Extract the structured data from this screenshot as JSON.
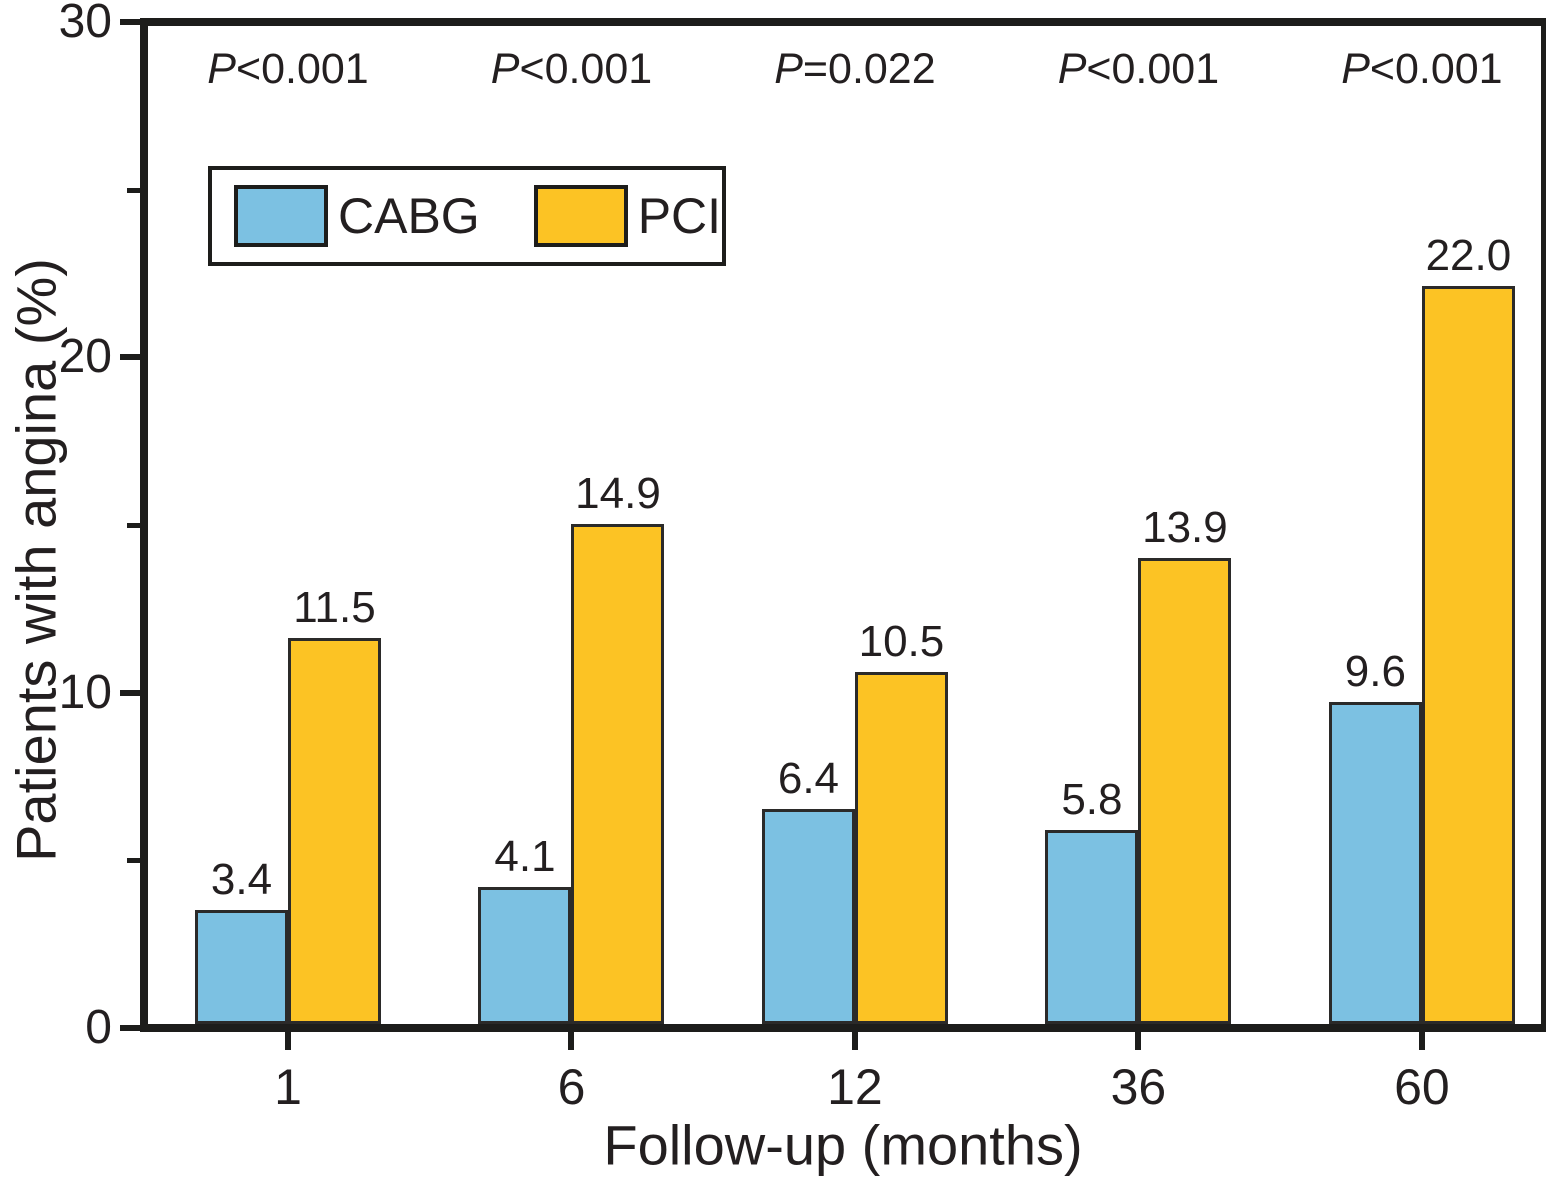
{
  "chart_data": {
    "type": "bar",
    "title": "",
    "xlabel": "Follow-up (months)",
    "ylabel": "Patients with angina (%)",
    "categories": [
      "1",
      "6",
      "12",
      "36",
      "60"
    ],
    "series": [
      {
        "name": "CABG",
        "color": "#7cc1e2",
        "values": [
          3.4,
          4.1,
          6.4,
          5.8,
          9.6
        ],
        "labels": [
          "3.4",
          "4.1",
          "6.4",
          "5.8",
          "9.6"
        ]
      },
      {
        "name": "PCI",
        "color": "#fcc324",
        "values": [
          11.5,
          14.9,
          10.5,
          13.9,
          22.0
        ],
        "labels": [
          "11.5",
          "14.9",
          "10.5",
          "13.9",
          "22.0"
        ]
      }
    ],
    "p_values": [
      "P<0.001",
      "P<0.001",
      "P=0.022",
      "P<0.001",
      "P<0.001"
    ],
    "ylim": [
      0,
      30
    ],
    "yticks_major": [
      0,
      10,
      20,
      30
    ],
    "yticks_minor": [
      5,
      15,
      25
    ],
    "grid": false,
    "legend_position": "inside-top-left"
  },
  "colors": {
    "axis": "#1d1d1b",
    "text": "#231f20",
    "bar_edge": "#2b2a29",
    "background": "#ffffff"
  }
}
